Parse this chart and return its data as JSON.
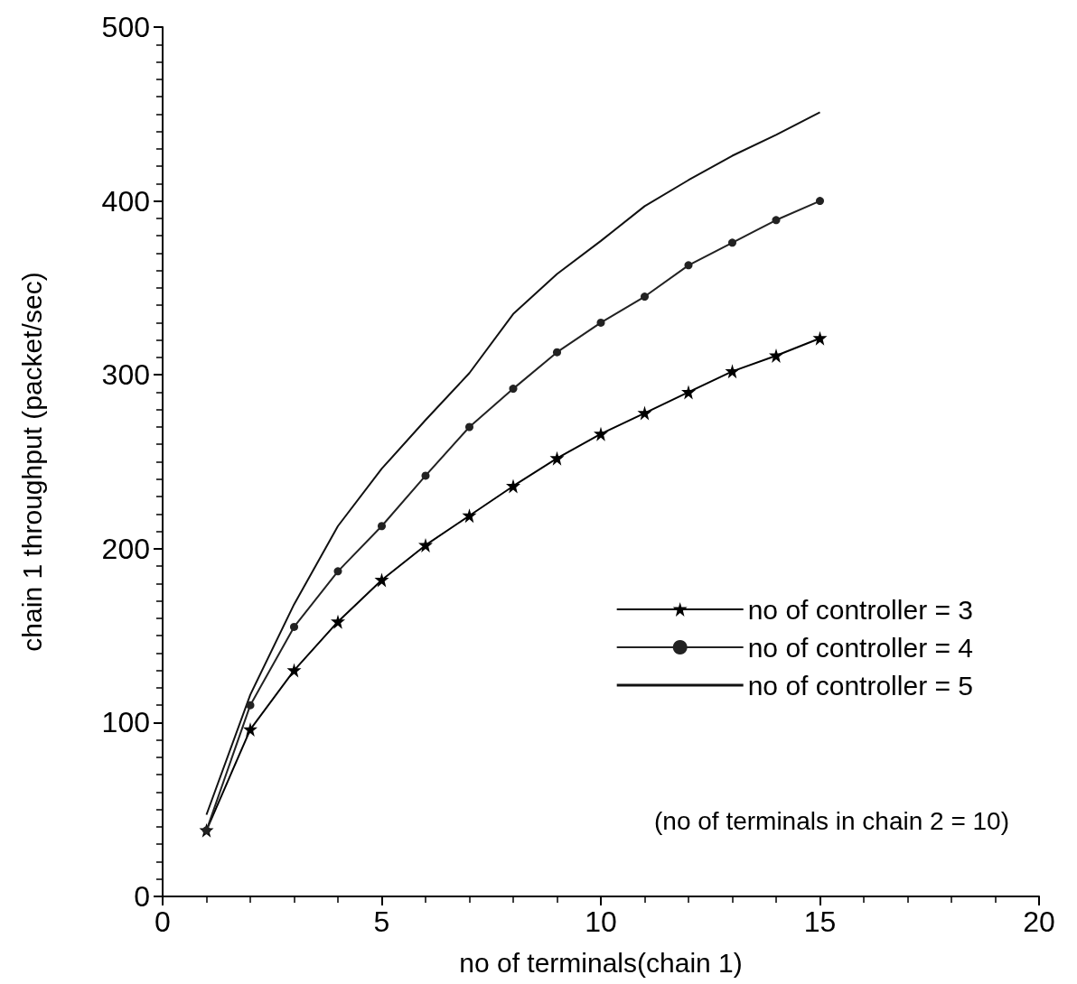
{
  "chart_data": {
    "type": "line",
    "xlabel": "no of terminals(chain 1)",
    "ylabel": "chain 1 throughput (packet/sec)",
    "x": [
      1,
      2,
      3,
      4,
      5,
      6,
      7,
      8,
      9,
      10,
      11,
      12,
      13,
      14,
      15
    ],
    "series": [
      {
        "name": "no of controller = 3",
        "color": "#000000",
        "marker": "star",
        "values": [
          38,
          96,
          130,
          158,
          182,
          202,
          219,
          236,
          252,
          266,
          278,
          290,
          302,
          311,
          321
        ]
      },
      {
        "name": "no of controller = 4",
        "color": "#222222",
        "marker": "circle",
        "values": [
          38,
          110,
          155,
          187,
          213,
          242,
          270,
          292,
          313,
          330,
          345,
          363,
          376,
          389,
          400
        ]
      },
      {
        "name": "no of controller = 5",
        "color": "#111111",
        "marker": "none",
        "values": [
          47,
          116,
          168,
          213,
          246,
          274,
          301,
          335,
          358,
          377,
          397,
          412,
          426,
          438,
          451
        ]
      }
    ],
    "xlim": [
      0,
      20
    ],
    "xticks": [
      0,
      5,
      10,
      15,
      20
    ],
    "ylim": [
      0,
      500
    ],
    "yticks": [
      0,
      100,
      200,
      300,
      400,
      500
    ],
    "grid": false,
    "legend": "right",
    "line_style": "solid",
    "annotations": [
      "(no of terminals in chain 2 = 10)"
    ]
  }
}
